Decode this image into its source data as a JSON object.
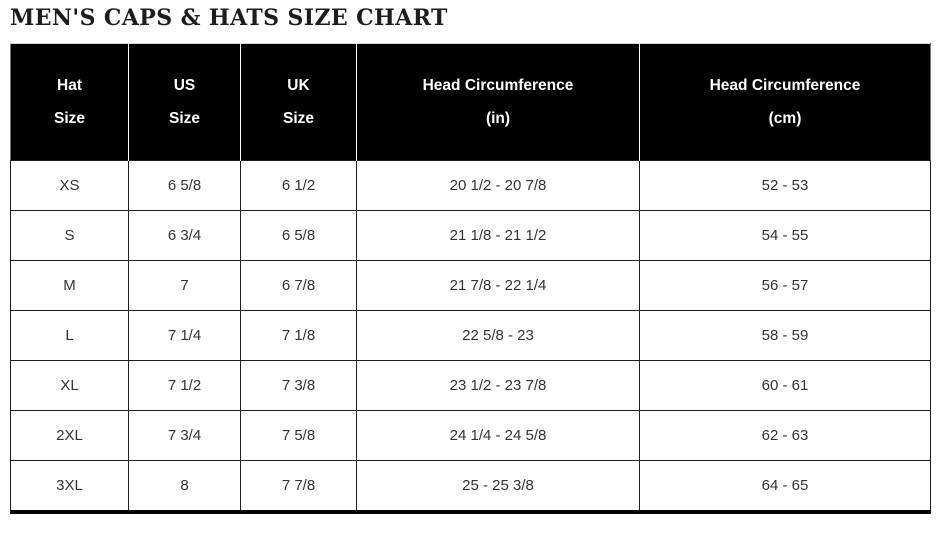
{
  "title": "MEN'S CAPS & HATS SIZE CHART",
  "table": {
    "columns": [
      {
        "line1": "Hat",
        "line2": "Size"
      },
      {
        "line1": "US",
        "line2": "Size"
      },
      {
        "line1": "UK",
        "line2": "Size"
      },
      {
        "line1": "Head Circumference",
        "line2": "(in)"
      },
      {
        "line1": "Head Circumference",
        "line2": "(cm)"
      }
    ],
    "rows": [
      {
        "hat_size": "XS",
        "us_size": "6 5/8",
        "uk_size": "6 1/2",
        "head_in": "20 1/2 - 20 7/8",
        "head_cm": "52 - 53"
      },
      {
        "hat_size": "S",
        "us_size": "6 3/4",
        "uk_size": "6 5/8",
        "head_in": "21 1/8 - 21 1/2",
        "head_cm": "54 - 55"
      },
      {
        "hat_size": "M",
        "us_size": "7",
        "uk_size": "6 7/8",
        "head_in": "21 7/8 - 22 1/4",
        "head_cm": "56 - 57"
      },
      {
        "hat_size": "L",
        "us_size": "7 1/4",
        "uk_size": "7 1/8",
        "head_in": "22 5/8 - 23",
        "head_cm": "58 - 59"
      },
      {
        "hat_size": "XL",
        "us_size": "7 1/2",
        "uk_size": "7 3/8",
        "head_in": "23 1/2 - 23 7/8",
        "head_cm": "60 - 61"
      },
      {
        "hat_size": "2XL",
        "us_size": "7 3/4",
        "uk_size": "7 5/8",
        "head_in": "24 1/4 - 24 5/8",
        "head_cm": "62 - 63"
      },
      {
        "hat_size": "3XL",
        "us_size": "8",
        "uk_size": "7 7/8",
        "head_in": "25 - 25 3/8",
        "head_cm": "64 - 65"
      }
    ]
  },
  "colors": {
    "header_background": "#000000",
    "header_text": "#ffffff",
    "body_text": "#333333",
    "border": "#1f1f1f",
    "title_text": "#1d1d1d"
  }
}
